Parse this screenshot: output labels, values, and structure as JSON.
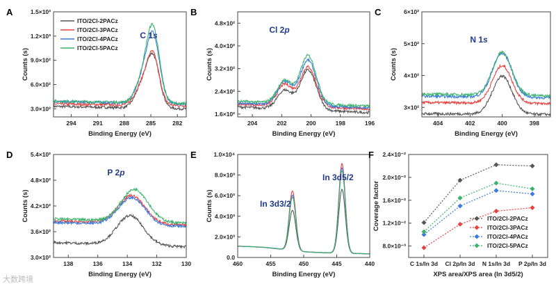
{
  "colors": {
    "ITO/2Cl-2PACz": "#555555",
    "ITO/2Cl-3PACz": "#e8413f",
    "ITO/2Cl-4PACz": "#3a7be0",
    "ITO/2Cl-5PACz": "#3cb36a"
  },
  "watermark": "大数跨境",
  "chart_data": [
    {
      "id": "A",
      "type": "line",
      "panel_label": "A",
      "annotation": "C 1s",
      "xlabel": "Binding Energy (eV)",
      "ylabel": "Counts (s)",
      "xlim": [
        296,
        281
      ],
      "ylim": [
        200,
        1500
      ],
      "xticks": [
        294,
        291,
        288,
        285,
        282
      ],
      "yticks": [
        {
          "v": 300,
          "t": "3.0×10²"
        },
        {
          "v": 600,
          "t": "6.0×10²"
        },
        {
          "v": 900,
          "t": "9.0×10²"
        },
        {
          "v": 1200,
          "t": "1.2×10³"
        },
        {
          "v": 1500,
          "t": "1.5×10³"
        }
      ],
      "legend": [
        "ITO/2Cl-2PACz",
        "ITO/2Cl-3PACz",
        "ITO/2Cl-4PACz",
        "ITO/2Cl-5PACz"
      ],
      "legend_position": "top-left",
      "series": [
        {
          "name": "ITO/2Cl-2PACz",
          "baseline": [
            330,
            300
          ],
          "peaks": [
            [
              284.8,
              650,
              0.75
            ],
            [
              286.2,
              200,
              0.7
            ]
          ]
        },
        {
          "name": "ITO/2Cl-3PACz",
          "baseline": [
            360,
            340
          ],
          "peaks": [
            [
              284.8,
              640,
              0.72
            ],
            [
              286.2,
              190,
              0.7
            ]
          ]
        },
        {
          "name": "ITO/2Cl-4PACz",
          "baseline": [
            390,
            360
          ],
          "peaks": [
            [
              284.8,
              860,
              0.75
            ],
            [
              286.2,
              200,
              0.7
            ]
          ]
        },
        {
          "name": "ITO/2Cl-5PACz",
          "baseline": [
            395,
            365
          ],
          "peaks": [
            [
              284.8,
              945,
              0.75
            ],
            [
              286.2,
              200,
              0.7
            ]
          ]
        }
      ]
    },
    {
      "id": "B",
      "type": "line",
      "panel_label": "B",
      "annotation": "Cl 2p",
      "xlabel": "Binding Energy (eV)",
      "ylabel": "Counts (s)",
      "xlim": [
        205,
        196
      ],
      "ylim": [
        150,
        520
      ],
      "xticks": [
        204,
        202,
        200,
        198,
        196
      ],
      "yticks": [
        {
          "v": 160,
          "t": "1.6×10²"
        },
        {
          "v": 240,
          "t": "2.4×10²"
        },
        {
          "v": 320,
          "t": "3.2×10²"
        },
        {
          "v": 400,
          "t": "4.0×10²"
        },
        {
          "v": 480,
          "t": "4.8×10²"
        }
      ],
      "series": [
        {
          "name": "ITO/2Cl-2PACz",
          "baseline": [
            185,
            165
          ],
          "peaks": [
            [
              201.8,
              65,
              0.5
            ],
            [
              200.2,
              140,
              0.55
            ]
          ]
        },
        {
          "name": "ITO/2Cl-3PACz",
          "baseline": [
            195,
            178
          ],
          "peaks": [
            [
              201.8,
              75,
              0.5
            ],
            [
              200.2,
              140,
              0.55
            ]
          ]
        },
        {
          "name": "ITO/2Cl-4PACz",
          "baseline": [
            198,
            182
          ],
          "peaks": [
            [
              201.8,
              80,
              0.5
            ],
            [
              200.2,
              160,
              0.55
            ]
          ]
        },
        {
          "name": "ITO/2Cl-5PACz",
          "baseline": [
            205,
            188
          ],
          "peaks": [
            [
              201.8,
              78,
              0.5
            ],
            [
              200.2,
              170,
              0.55
            ]
          ]
        }
      ]
    },
    {
      "id": "C",
      "type": "line",
      "panel_label": "C",
      "annotation": "N 1s",
      "xlabel": "Binding Energy (eV)",
      "ylabel": "Counts (s)",
      "xlim": [
        405,
        397
      ],
      "ylim": [
        270,
        600
      ],
      "xticks": [
        404,
        402,
        400,
        398
      ],
      "yticks": [
        {
          "v": 300,
          "t": "3×10²"
        },
        {
          "v": 400,
          "t": "4×10²"
        },
        {
          "v": 500,
          "t": "5×10²"
        },
        {
          "v": 600,
          "t": "6×10²"
        }
      ],
      "series": [
        {
          "name": "ITO/2Cl-2PACz",
          "baseline": [
            280,
            278
          ],
          "peaks": [
            [
              400,
              120,
              0.6
            ]
          ]
        },
        {
          "name": "ITO/2Cl-3PACz",
          "baseline": [
            315,
            312
          ],
          "peaks": [
            [
              400,
              118,
              0.6
            ]
          ]
        },
        {
          "name": "ITO/2Cl-4PACz",
          "baseline": [
            335,
            330
          ],
          "peaks": [
            [
              400,
              138,
              0.6
            ]
          ]
        },
        {
          "name": "ITO/2Cl-5PACz",
          "baseline": [
            342,
            336
          ],
          "peaks": [
            [
              400,
              135,
              0.6
            ]
          ]
        }
      ]
    },
    {
      "id": "D",
      "type": "line",
      "panel_label": "D",
      "annotation": "P 2p",
      "xlabel": "Binding Energy (eV)",
      "ylabel": "Counts (s)",
      "xlim": [
        139,
        130
      ],
      "ylim": [
        300,
        540
      ],
      "xticks": [
        138,
        136,
        134,
        132,
        130
      ],
      "yticks": [
        {
          "v": 300,
          "t": "3.0×10²"
        },
        {
          "v": 360,
          "t": "3.6×10²"
        },
        {
          "v": 420,
          "t": "4.2×10²"
        },
        {
          "v": 480,
          "t": "4.8×10²"
        },
        {
          "v": 540,
          "t": "5.4×10²"
        }
      ],
      "series": [
        {
          "name": "ITO/2Cl-2PACz",
          "baseline": [
            335,
            325
          ],
          "peaks": [
            [
              133.8,
              68,
              0.9
            ]
          ]
        },
        {
          "name": "ITO/2Cl-3PACz",
          "baseline": [
            385,
            375
          ],
          "peaks": [
            [
              133.7,
              65,
              0.9
            ]
          ]
        },
        {
          "name": "ITO/2Cl-4PACz",
          "baseline": [
            382,
            372
          ],
          "peaks": [
            [
              133.7,
              63,
              0.9
            ]
          ]
        },
        {
          "name": "ITO/2Cl-5PACz",
          "baseline": [
            390,
            380
          ],
          "peaks": [
            [
              133.5,
              75,
              0.9
            ]
          ]
        }
      ]
    },
    {
      "id": "E",
      "type": "line",
      "panel_label": "E",
      "annotation_left": "In 3d3/2",
      "annotation_right": "In 3d5/2",
      "xlabel": "Binding Energy (eV)",
      "ylabel": "Counts (s)",
      "xlim": [
        460,
        440
      ],
      "ylim": [
        0,
        10000
      ],
      "xticks": [
        460,
        455,
        450,
        445,
        440
      ],
      "yticks": [
        {
          "v": 0,
          "t": "0.0"
        },
        {
          "v": 2000,
          "t": "2.0×10³"
        },
        {
          "v": 4000,
          "t": "4.0×10³"
        },
        {
          "v": 6000,
          "t": "6.0×10³"
        },
        {
          "v": 8000,
          "t": "8.0×10³"
        },
        {
          "v": 10000,
          "t": "1.0×10⁴"
        }
      ],
      "series": [
        {
          "name": "ITO/2Cl-2PACz",
          "baseline": [
            1100,
            350
          ],
          "peaks": [
            [
              451.7,
              3900,
              0.5
            ],
            [
              444.2,
              6200,
              0.5
            ]
          ]
        },
        {
          "name": "ITO/2Cl-3PACz",
          "baseline": [
            1100,
            350
          ],
          "peaks": [
            [
              451.7,
              5800,
              0.5
            ],
            [
              444.2,
              8700,
              0.5
            ]
          ]
        },
        {
          "name": "ITO/2Cl-4PACz",
          "baseline": [
            1100,
            350
          ],
          "peaks": [
            [
              451.7,
              5400,
              0.5
            ],
            [
              444.2,
              8300,
              0.5
            ]
          ]
        },
        {
          "name": "ITO/2Cl-5PACz",
          "baseline": [
            1100,
            350
          ],
          "peaks": [
            [
              451.7,
              5200,
              0.5
            ],
            [
              444.2,
              8000,
              0.5
            ]
          ]
        }
      ]
    },
    {
      "id": "F",
      "type": "line",
      "panel_label": "F",
      "xlabel": "XPS area/XPS area (In 3d5/2)",
      "ylabel": "Coverage factor",
      "ylim": [
        0.006,
        0.024
      ],
      "categories": [
        "C 1s/In 3d",
        "Cl 2p/In 3d",
        "N 1s/In 3d",
        "P 2p/In 3d"
      ],
      "yticks": [
        {
          "v": 0.008,
          "t": "8.0×10⁻³"
        },
        {
          "v": 0.012,
          "t": "1.2×10⁻²"
        },
        {
          "v": 0.016,
          "t": "1.6×10⁻²"
        },
        {
          "v": 0.02,
          "t": "2.0×10⁻²"
        },
        {
          "v": 0.024,
          "t": "2.4×10⁻²"
        }
      ],
      "legend_position": "bottom-right",
      "series": [
        {
          "name": "ITO/2Cl-2PACz",
          "values": [
            0.0121,
            0.0195,
            0.0222,
            0.022
          ]
        },
        {
          "name": "ITO/2Cl-3PACz",
          "values": [
            0.0077,
            0.0118,
            0.0141,
            0.0147
          ]
        },
        {
          "name": "ITO/2Cl-4PACz",
          "values": [
            0.01,
            0.015,
            0.0177,
            0.0171
          ]
        },
        {
          "name": "ITO/2Cl-5PACz",
          "values": [
            0.0105,
            0.0164,
            0.019,
            0.018
          ]
        }
      ]
    }
  ]
}
